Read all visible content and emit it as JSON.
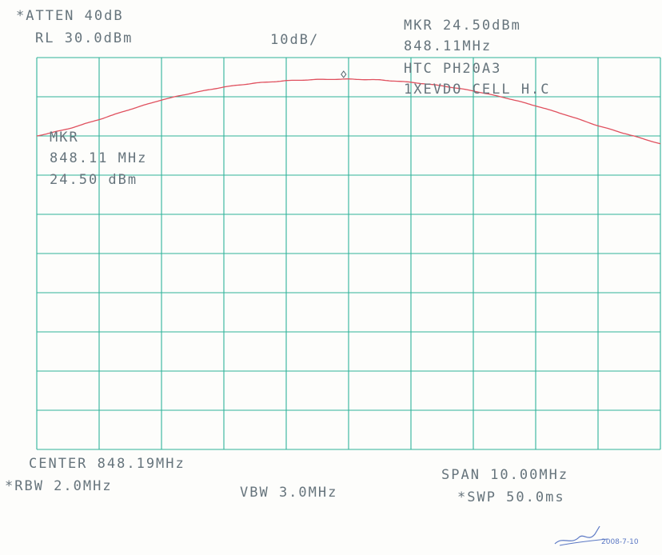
{
  "header": {
    "atten": "*ATTEN 40dB",
    "ref_level": "RL 30.0dBm",
    "scale": "10dB/",
    "marker_readout": "MKR 24.50dBm",
    "marker_freq_readout": "848.11MHz",
    "device": "HTC PH20A3",
    "mode": "1XEVDO CELL H.C"
  },
  "marker_box": {
    "title": "MKR",
    "freq": "848.11 MHz",
    "level": "24.50 dBm"
  },
  "footer": {
    "center": "CENTER 848.19MHz",
    "span": "SPAN 10.00MHz",
    "rbw": "*RBW 2.0MHz",
    "vbw": "VBW 3.0MHz",
    "swp": "*SWP 50.0ms"
  },
  "signature": {
    "text": "2008-7-10"
  },
  "colors": {
    "grid": "#2fb39a",
    "trace": "#e0505e",
    "text": "#66747c"
  },
  "chart_data": {
    "type": "line",
    "x_units": "MHz",
    "y_units": "dBm",
    "xlim": [
      843.19,
      853.19
    ],
    "ylim": [
      -70,
      30
    ],
    "grid": true,
    "grid_divisions": [
      10,
      10
    ],
    "marker": {
      "x": 848.11,
      "y": 24.5
    },
    "series": [
      {
        "x": [
          843.19,
          843.69,
          844.19,
          844.69,
          845.19,
          845.69,
          846.19,
          846.69,
          847.19,
          847.69,
          848.19,
          848.69,
          849.19,
          849.69,
          850.19,
          850.69,
          851.19,
          851.69,
          852.19,
          852.69,
          853.19
        ],
        "y": [
          10.0,
          11.8,
          14.2,
          16.8,
          19.2,
          21.0,
          22.5,
          23.5,
          24.1,
          24.4,
          24.5,
          24.3,
          23.7,
          22.8,
          21.5,
          19.8,
          17.7,
          15.3,
          12.6,
          10.3,
          8.0
        ]
      }
    ]
  }
}
